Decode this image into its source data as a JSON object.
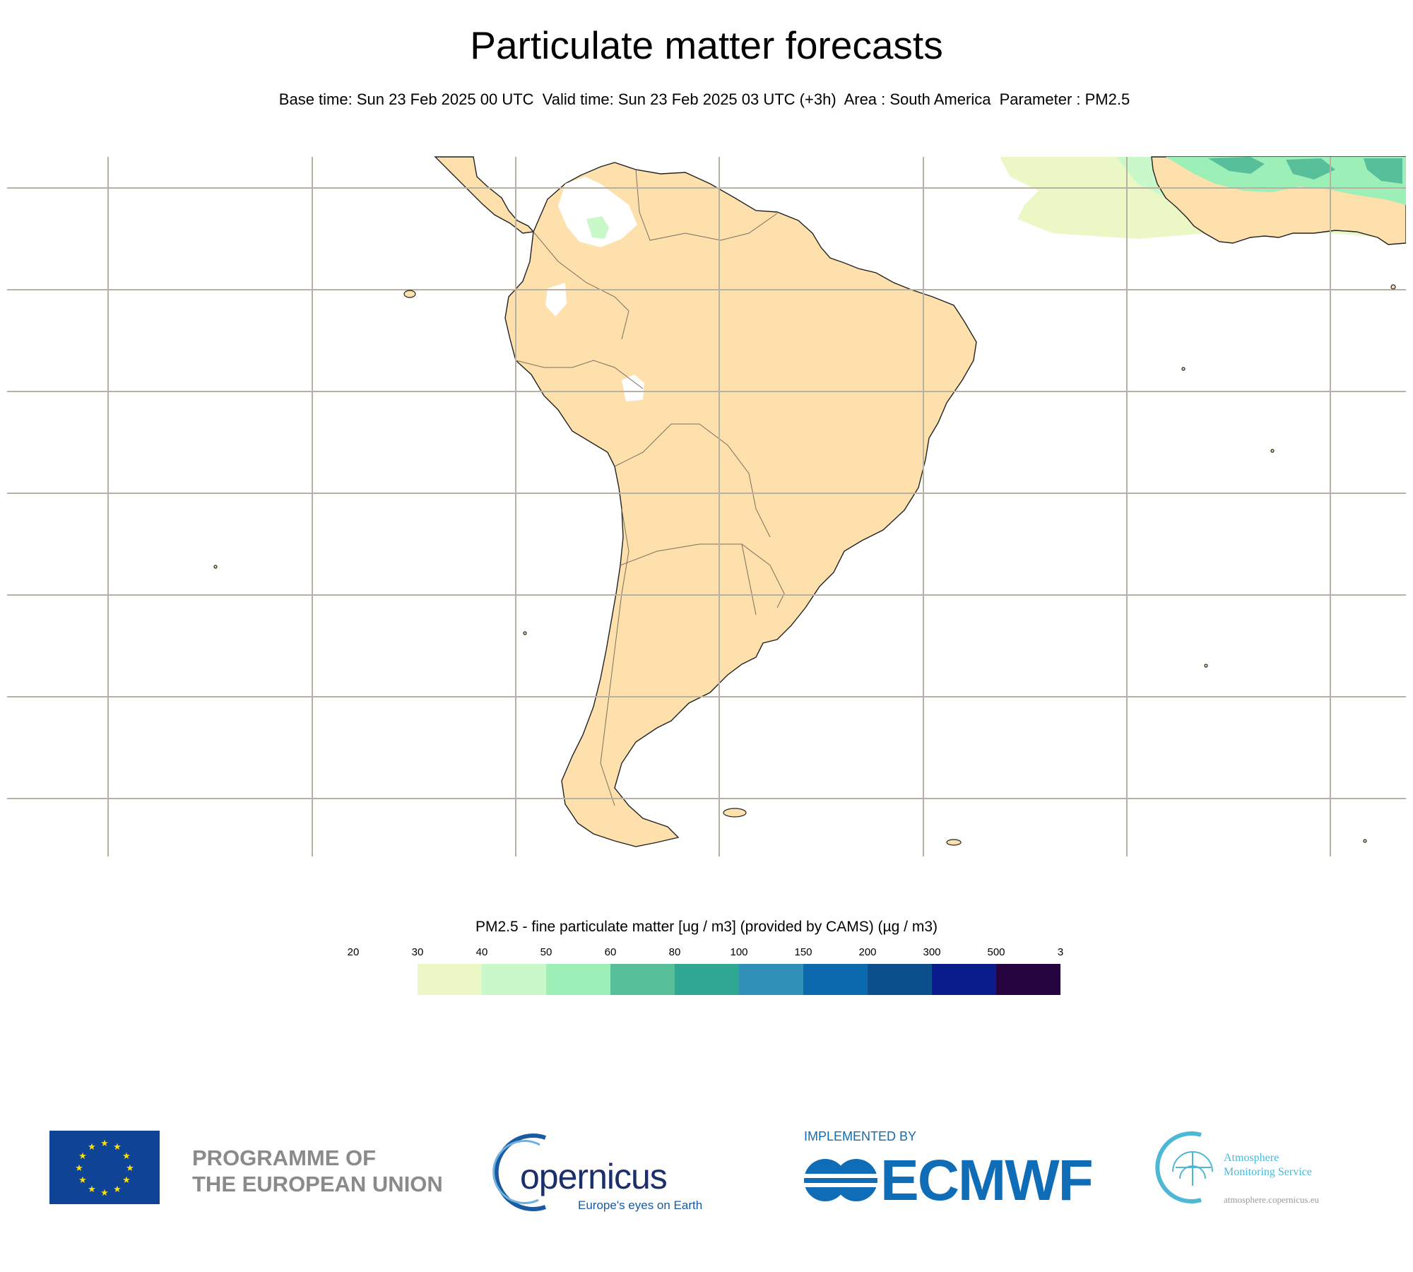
{
  "header": {
    "title": "Particulate matter forecasts",
    "base_time": "Base time: Sun 23 Feb 2025 00 UTC",
    "valid_time": "Valid time: Sun 23 Feb 2025 03 UTC (+3h)",
    "area": "Area : South America",
    "parameter": "Parameter : PM2.5"
  },
  "map": {
    "region": "South America",
    "land_color": "#fde0ac",
    "ocean_color": "#ffffff",
    "grid_color": "#b8b0a0",
    "coast_color": "#222222"
  },
  "legend": {
    "title": "PM2.5 - fine particulate matter [ug / m3] (provided by CAMS) (µg / m3)",
    "tick_labels": [
      "20",
      "30",
      "40",
      "50",
      "60",
      "80",
      "100",
      "150",
      "200",
      "300",
      "500",
      "3"
    ],
    "colors": [
      "#ebf7c4",
      "#c9f9cb",
      "#9cefb6",
      "#58bf9b",
      "#2ea793",
      "#3190b8",
      "#0b6aad",
      "#0b4f8c",
      "#0a1b8b",
      "#260440"
    ]
  },
  "footer": {
    "eu_line1": "PROGRAMME OF",
    "eu_line2": "THE EUROPEAN UNION",
    "copernicus_word": "opernicus",
    "copernicus_tagline": "Europe's eyes on Earth",
    "implemented_by": "IMPLEMENTED BY",
    "ecmwf": "ECMWF",
    "ams_line1": "Atmosphere",
    "ams_line2": "Monitoring Service",
    "ams_url": "atmosphere.copernicus.eu"
  }
}
